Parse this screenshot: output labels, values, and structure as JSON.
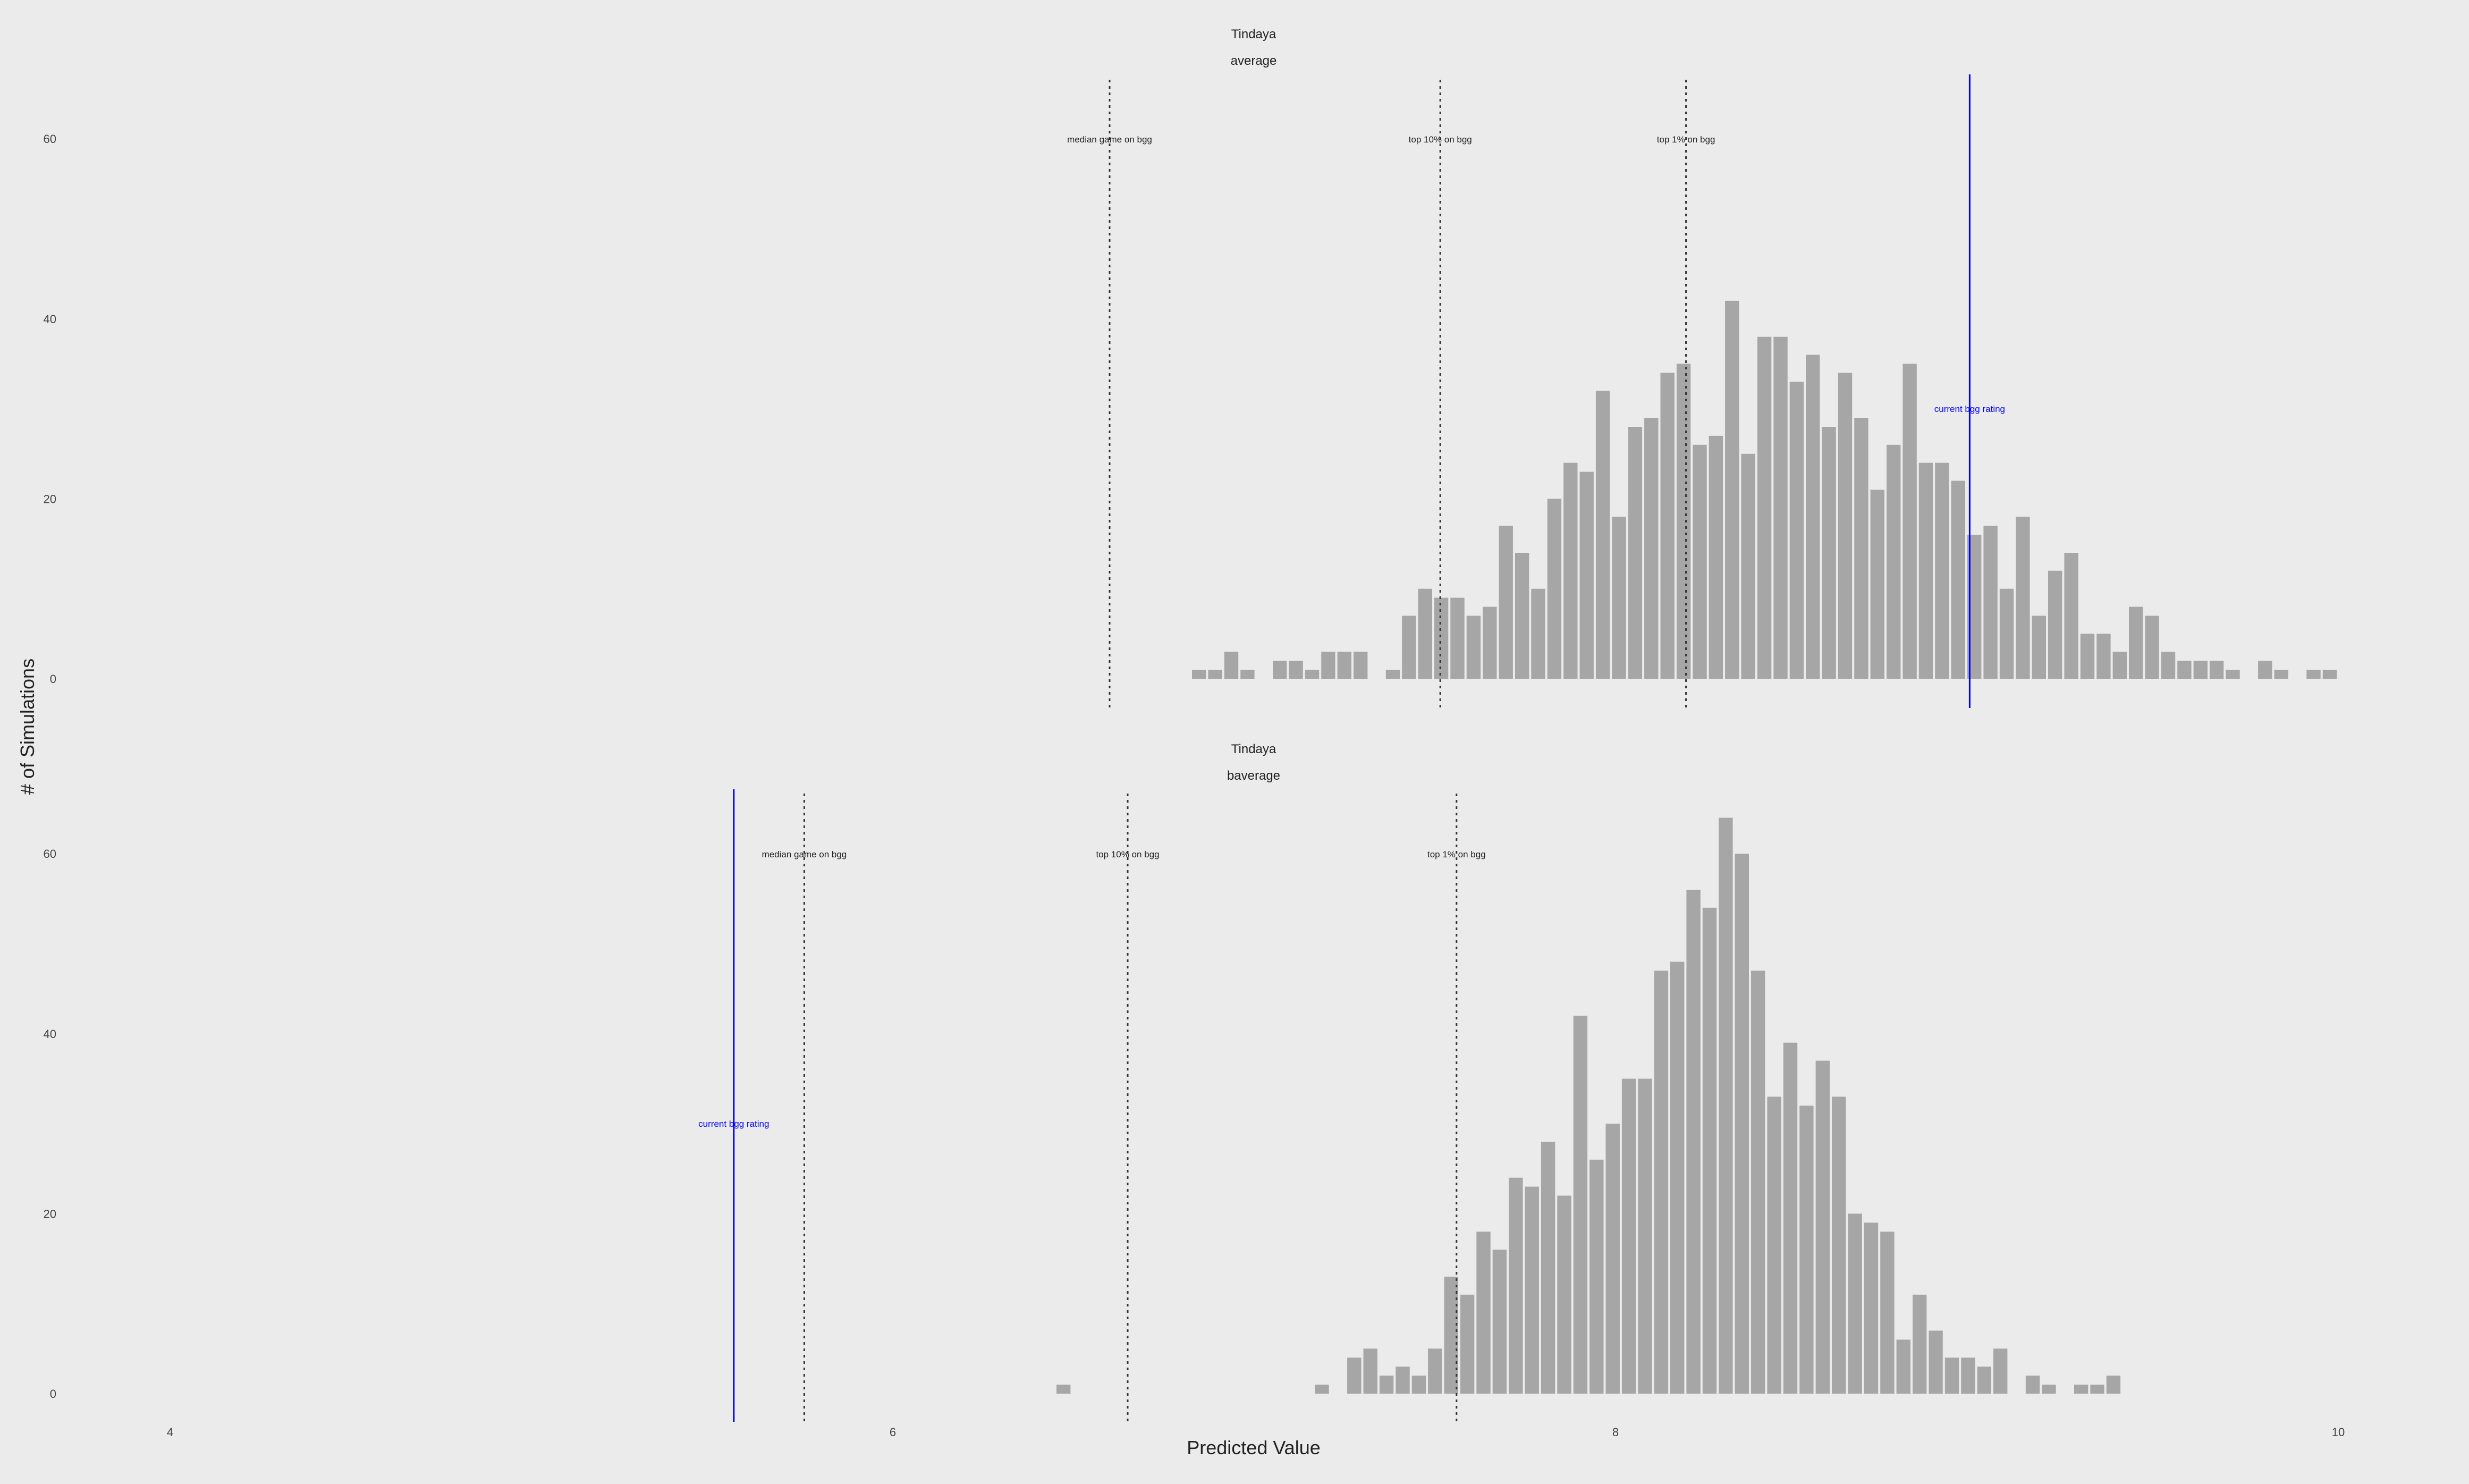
{
  "figure": {
    "ylabel": "# of Simulations",
    "xlabel": "Predicted Value",
    "x_ticks": [
      "4",
      "6",
      "8",
      "10"
    ],
    "y_ticks": [
      "0",
      "20",
      "40",
      "60"
    ]
  },
  "chart_data": [
    {
      "type": "bar",
      "title": "Tindaya",
      "subtitle": "average",
      "xlim": [
        3.9,
        10.2
      ],
      "ylim": [
        0,
        68
      ],
      "bin_start": 6.825,
      "bin_width": 0.0447,
      "counts": [
        1,
        1,
        3,
        1,
        0,
        2,
        2,
        1,
        3,
        3,
        3,
        0,
        1,
        7,
        10,
        9,
        9,
        7,
        8,
        17,
        14,
        10,
        20,
        24,
        23,
        32,
        18,
        28,
        29,
        34,
        35,
        26,
        27,
        42,
        25,
        38,
        38,
        33,
        36,
        28,
        34,
        29,
        21,
        26,
        35,
        24,
        24,
        22,
        16,
        17,
        10,
        18,
        7,
        12,
        14,
        5,
        5,
        3,
        8,
        7,
        3,
        2,
        2,
        2,
        1,
        0,
        2,
        1,
        0,
        1,
        1
      ],
      "reference_lines": [
        {
          "x": 6.6,
          "label": "median game on bgg",
          "style": "dotted"
        },
        {
          "x": 7.515,
          "label": "top 10% on bgg",
          "style": "dotted"
        },
        {
          "x": 8.195,
          "label": "top 1% on bgg",
          "style": "dotted"
        },
        {
          "x": 8.98,
          "label": "current bgg rating",
          "style": "solid"
        }
      ],
      "bar_color": "#a6a6a6",
      "ref_color": "#333333",
      "current_color": "#0000ff"
    },
    {
      "type": "bar",
      "title": "Tindaya",
      "subtitle": "baverage",
      "xlim": [
        3.9,
        10.2
      ],
      "ylim": [
        0,
        68
      ],
      "bin_start": 6.45,
      "bin_width": 0.0447,
      "counts": [
        1,
        0,
        0,
        0,
        0,
        0,
        0,
        0,
        0,
        0,
        0,
        0,
        0,
        0,
        0,
        0,
        1,
        0,
        4,
        5,
        2,
        3,
        2,
        5,
        13,
        11,
        18,
        16,
        24,
        23,
        28,
        22,
        42,
        26,
        30,
        35,
        35,
        47,
        48,
        56,
        54,
        64,
        60,
        47,
        33,
        39,
        32,
        37,
        33,
        20,
        19,
        18,
        6,
        11,
        7,
        4,
        4,
        3,
        5,
        0,
        2,
        1,
        0,
        1,
        1,
        2
      ],
      "reference_lines": [
        {
          "x": 5.755,
          "label": "median game on bgg",
          "style": "dotted"
        },
        {
          "x": 6.65,
          "label": "top 10% on bgg",
          "style": "dotted"
        },
        {
          "x": 7.56,
          "label": "top 1% on bgg",
          "style": "dotted"
        },
        {
          "x": 5.56,
          "label": "current bgg rating",
          "style": "solid"
        }
      ],
      "bar_color": "#a6a6a6",
      "ref_color": "#333333",
      "current_color": "#0000ff"
    }
  ]
}
